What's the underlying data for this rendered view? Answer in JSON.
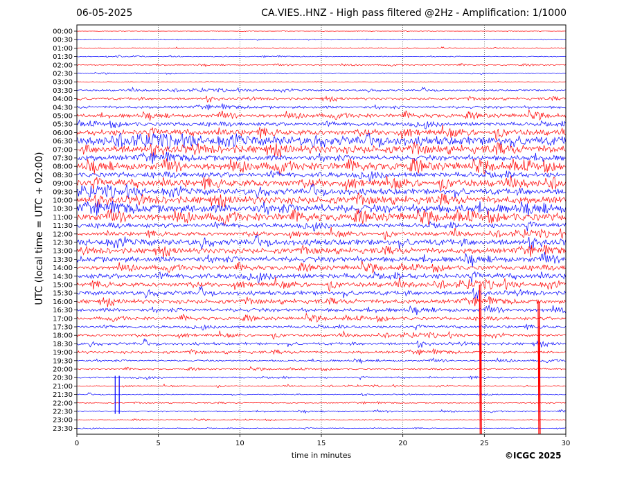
{
  "header": {
    "date": "06-05-2025",
    "title": "CA.VIES..HNZ - High pass filtered @2Hz - Amplification: 1/1000"
  },
  "footer": {
    "copyright": "©ICGC 2025"
  },
  "colors": {
    "red_trace": "#ff0000",
    "blue_trace": "#0000ff",
    "grid": "#000000",
    "background": "#ffffff"
  },
  "chart_data": {
    "type": "line",
    "title": "CA.VIES..HNZ - High pass filtered @2Hz - Amplification: 1/1000",
    "xlabel": "time in minutes",
    "ylabel": "UTC (local time = UTC + 02:00)",
    "xlim": [
      0,
      30
    ],
    "x_ticks": [
      0,
      5,
      10,
      15,
      20,
      25,
      30
    ],
    "vertical_grid": [
      5,
      10,
      15,
      20,
      25
    ],
    "grid": "vertical dotted",
    "series_colors_alternate": [
      "red",
      "blue"
    ],
    "rows": [
      "00:00",
      "00:30",
      "01:00",
      "01:30",
      "02:00",
      "02:30",
      "03:00",
      "03:30",
      "04:00",
      "04:30",
      "05:00",
      "05:30",
      "06:00",
      "06:30",
      "07:00",
      "07:30",
      "08:00",
      "08:30",
      "09:00",
      "09:30",
      "10:00",
      "10:30",
      "11:00",
      "11:30",
      "12:00",
      "12:30",
      "13:00",
      "13:30",
      "14:00",
      "14:30",
      "15:00",
      "15:30",
      "16:00",
      "16:30",
      "17:00",
      "17:30",
      "18:00",
      "18:30",
      "19:00",
      "19:30",
      "20:00",
      "20:30",
      "21:00",
      "21:30",
      "22:00",
      "22:30",
      "23:00",
      "23:30"
    ],
    "row_activity": [
      0.3,
      0.4,
      0.6,
      0.7,
      0.9,
      0.6,
      0.3,
      1.4,
      2.0,
      2.2,
      3.0,
      3.0,
      4.5,
      7.5,
      6.5,
      4.5,
      6.0,
      4.0,
      5.5,
      5.0,
      6.0,
      7.0,
      6.0,
      3.5,
      3.0,
      5.0,
      4.5,
      4.5,
      3.5,
      4.0,
      3.5,
      3.5,
      3.5,
      3.0,
      2.5,
      2.0,
      2.0,
      2.2,
      2.2,
      1.5,
      1.2,
      1.2,
      0.8,
      0.8,
      0.9,
      1.0,
      0.7,
      0.6
    ],
    "spikes": [
      {
        "row": "21:30",
        "x": 2.35,
        "amplitude": "large",
        "color": "blue"
      },
      {
        "row": "21:30",
        "x": 2.6,
        "amplitude": "large",
        "color": "blue"
      },
      {
        "row": "15:00",
        "x": 24.7,
        "amplitude": "very large",
        "color": "red"
      },
      {
        "row": "16:00",
        "x": 28.3,
        "amplitude": "very large",
        "color": "red"
      }
    ]
  }
}
